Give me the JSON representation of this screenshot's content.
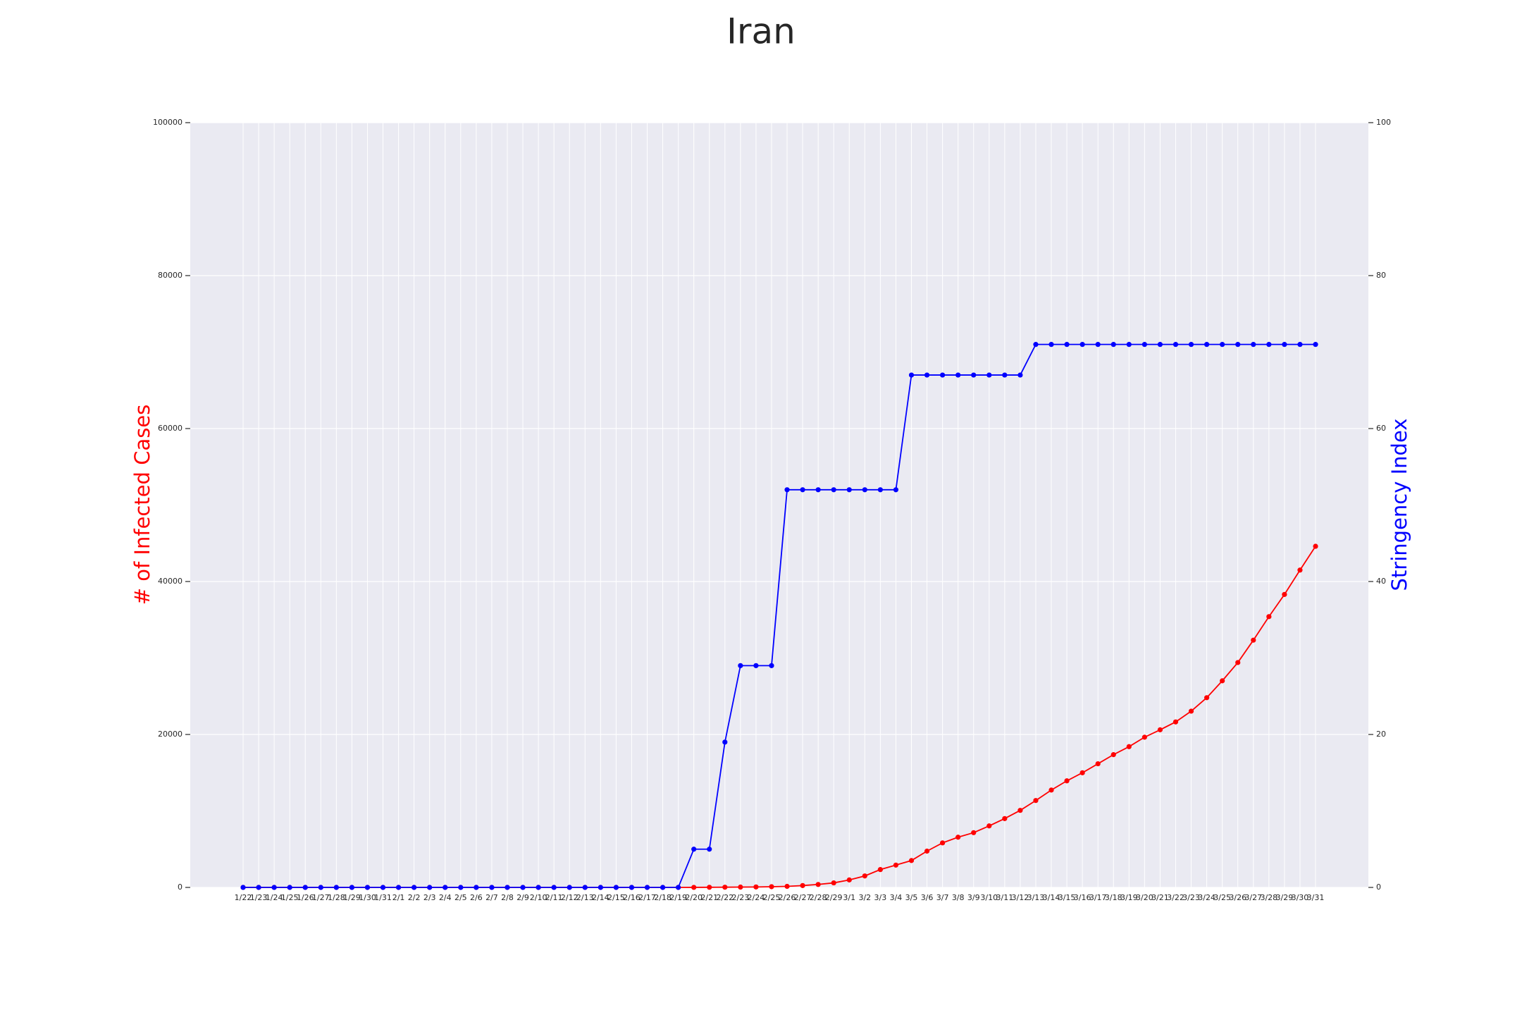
{
  "chart_data": {
    "type": "line",
    "title": "Iran",
    "y_label": "# of Infected Cases",
    "y2_label": "Stringency Index",
    "categories": [
      "1/22",
      "1/23",
      "1/24",
      "1/25",
      "1/26",
      "1/27",
      "1/28",
      "1/29",
      "1/30",
      "1/31",
      "2/1",
      "2/2",
      "2/3",
      "2/4",
      "2/5",
      "2/6",
      "2/7",
      "2/8",
      "2/9",
      "2/10",
      "2/11",
      "2/12",
      "2/13",
      "2/14",
      "2/15",
      "2/16",
      "2/17",
      "2/18",
      "2/19",
      "2/20",
      "2/21",
      "2/22",
      "2/23",
      "2/24",
      "2/25",
      "2/26",
      "2/27",
      "2/28",
      "2/29",
      "3/1",
      "3/2",
      "3/3",
      "3/4",
      "3/5",
      "3/6",
      "3/7",
      "3/8",
      "3/9",
      "3/10",
      "3/11",
      "3/12",
      "3/13",
      "3/14",
      "3/15",
      "3/16",
      "3/17",
      "3/18",
      "3/19",
      "3/20",
      "3/21",
      "3/22",
      "3/23",
      "3/24",
      "3/25",
      "3/26",
      "3/27",
      "3/28",
      "3/29",
      "3/30",
      "3/31"
    ],
    "series": [
      {
        "name": "# of Infected Cases",
        "color": "#ff0000",
        "axis": "y",
        "values": [
          0,
          0,
          0,
          0,
          0,
          0,
          0,
          0,
          0,
          0,
          0,
          0,
          0,
          0,
          0,
          0,
          0,
          0,
          0,
          0,
          0,
          0,
          0,
          0,
          0,
          0,
          0,
          0,
          2,
          5,
          18,
          28,
          43,
          61,
          95,
          139,
          245,
          388,
          593,
          978,
          1501,
          2336,
          2922,
          3513,
          4747,
          5823,
          6566,
          7161,
          8042,
          9000,
          10075,
          11364,
          12729,
          13938,
          14991,
          16169,
          17361,
          18407,
          19644,
          20610,
          21638,
          23049,
          24811,
          27017,
          29406,
          32332,
          35408,
          38309,
          41495,
          44605
        ]
      },
      {
        "name": "Stringency Index",
        "color": "#0000ff",
        "axis": "y2",
        "values": [
          0,
          0,
          0,
          0,
          0,
          0,
          0,
          0,
          0,
          0,
          0,
          0,
          0,
          0,
          0,
          0,
          0,
          0,
          0,
          0,
          0,
          0,
          0,
          0,
          0,
          0,
          0,
          0,
          0,
          5,
          5,
          19,
          29,
          29,
          29,
          52,
          52,
          52,
          52,
          52,
          52,
          52,
          52,
          67,
          67,
          67,
          67,
          67,
          67,
          67,
          67,
          71,
          71,
          71,
          71,
          71,
          71,
          71,
          71,
          71,
          71,
          71,
          71,
          71,
          71,
          71,
          71,
          71,
          71,
          71
        ]
      }
    ],
    "ylim": [
      0,
      100000
    ],
    "yticks": [
      0,
      20000,
      40000,
      60000,
      80000,
      100000
    ],
    "y2lim": [
      0,
      100
    ],
    "y2ticks": [
      0,
      20,
      40,
      60,
      80,
      100
    ],
    "grid": true
  }
}
